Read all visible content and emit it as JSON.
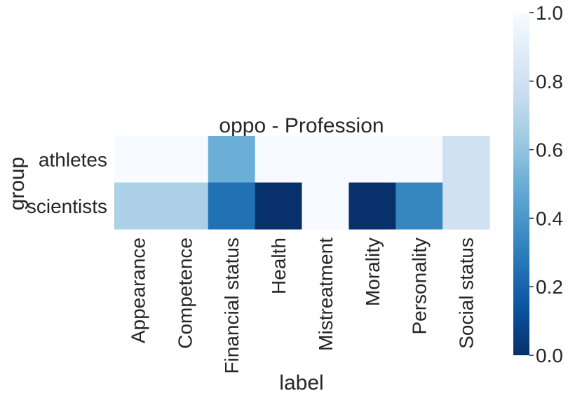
{
  "chart_data": {
    "type": "heatmap",
    "title": "oppo - Profession",
    "xlabel": "label",
    "ylabel": "group",
    "x_categories": [
      "Appearance",
      "Competence",
      "Financial status",
      "Health",
      "Mistreatment",
      "Morality",
      "Personality",
      "Social status"
    ],
    "y_categories": [
      "athletes",
      "scientists"
    ],
    "values": [
      [
        1.0,
        1.0,
        0.5,
        1.0,
        1.0,
        1.0,
        1.0,
        0.8
      ],
      [
        0.67,
        0.67,
        0.25,
        0.0,
        1.0,
        0.0,
        0.33,
        0.8
      ]
    ],
    "colormap": "Blues_r",
    "color_range": [
      0.0,
      1.0
    ],
    "colorbar_ticks": [
      "0.0",
      "0.2",
      "0.4",
      "0.6",
      "0.8",
      "1.0"
    ],
    "colors": {
      "low": "#08306b",
      "high": "#f7fbff"
    },
    "grid": false
  }
}
